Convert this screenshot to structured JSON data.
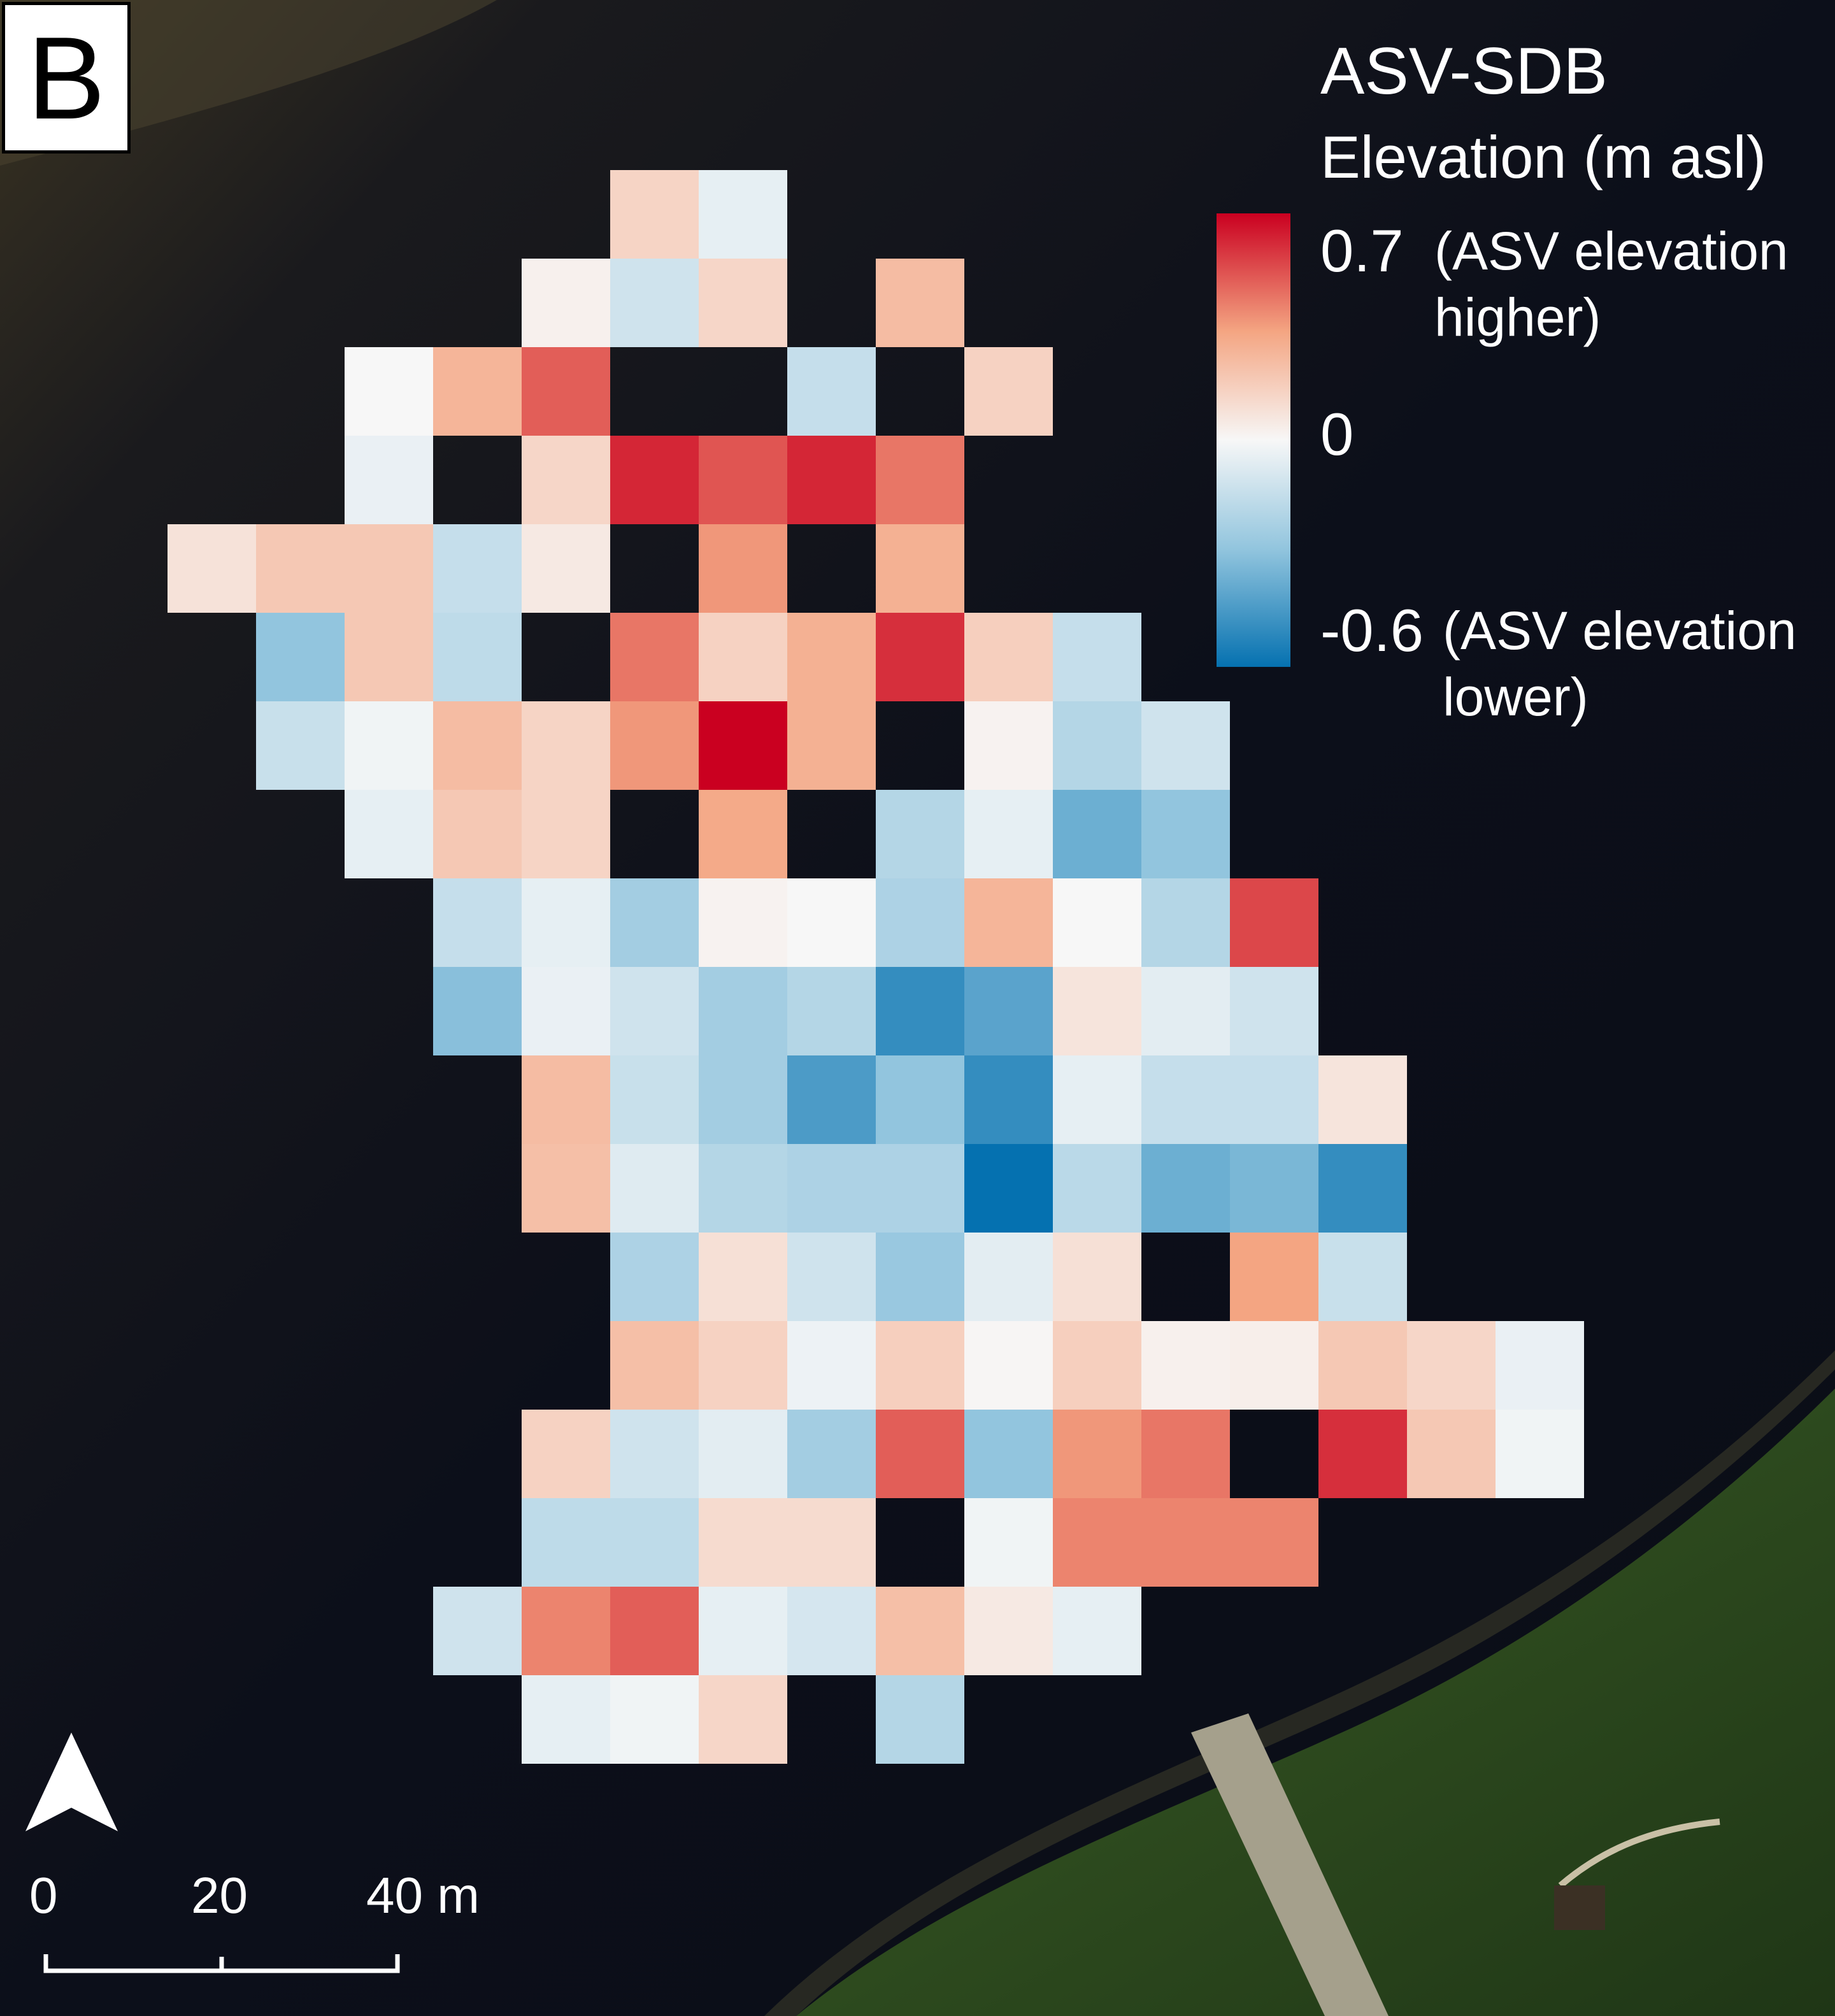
{
  "panel_label": "B",
  "legend": {
    "title": "ASV-SDB",
    "subtitle": "Elevation (m asl)",
    "max_value": "0.7",
    "max_note_1": "(ASV elevation",
    "max_note_2": "higher)",
    "mid_value": "0",
    "min_value": "-0.6",
    "min_note_1": "(ASV elevation",
    "min_note_2": "lower)",
    "colors": {
      "high": "#ca0020",
      "mid": "#f7f7f7",
      "low": "#0571b0"
    },
    "range": [
      -0.6,
      0.7
    ]
  },
  "north_arrow": {
    "icon": "north-arrow-icon"
  },
  "scale_bar": {
    "labels": [
      "0",
      "20",
      "40 m"
    ]
  },
  "grid": {
    "cell_size_m": 10,
    "min_value": -0.6,
    "max_value": 0.7,
    "rows": [
      [
        null,
        null,
        null,
        null,
        null,
        null,
        0.15,
        -0.05,
        null,
        null,
        null,
        null,
        null,
        null,
        null,
        null
      ],
      [
        null,
        null,
        null,
        null,
        null,
        0.03,
        -0.12,
        0.14,
        null,
        0.25,
        null,
        null,
        null,
        null,
        null,
        null
      ],
      [
        null,
        null,
        null,
        0.0,
        0.28,
        0.5,
        null,
        null,
        -0.15,
        null,
        0.16,
        null,
        null,
        null,
        null,
        null
      ],
      [
        null,
        null,
        null,
        -0.04,
        null,
        0.14,
        0.62,
        0.52,
        0.62,
        0.45,
        null,
        null,
        null,
        null,
        null,
        null
      ],
      [
        null,
        0.09,
        0.2,
        0.2,
        -0.15,
        0.06,
        null,
        0.38,
        null,
        0.3,
        null,
        null,
        null,
        null,
        null,
        null
      ],
      [
        null,
        null,
        -0.3,
        0.2,
        -0.17,
        null,
        0.45,
        0.16,
        0.3,
        0.6,
        0.17,
        -0.15,
        null,
        null,
        null,
        null
      ],
      [
        null,
        null,
        -0.14,
        -0.02,
        0.25,
        0.15,
        0.38,
        0.7,
        0.3,
        null,
        0.02,
        -0.2,
        -0.12,
        null,
        null,
        null
      ],
      [
        null,
        null,
        null,
        -0.05,
        0.2,
        0.15,
        null,
        0.33,
        null,
        -0.2,
        -0.05,
        -0.38,
        -0.3,
        null,
        null,
        null
      ],
      [
        null,
        null,
        null,
        null,
        -0.15,
        -0.05,
        -0.25,
        0.02,
        0.0,
        -0.22,
        0.28,
        0.0,
        -0.2,
        0.55,
        null,
        null
      ],
      [
        null,
        null,
        null,
        null,
        -0.32,
        -0.04,
        -0.12,
        -0.25,
        -0.2,
        -0.5,
        -0.42,
        0.08,
        -0.06,
        -0.12,
        null,
        null
      ],
      [
        null,
        null,
        null,
        null,
        null,
        0.25,
        -0.14,
        -0.25,
        -0.45,
        -0.3,
        -0.5,
        -0.05,
        -0.15,
        -0.15,
        0.08,
        null
      ],
      [
        null,
        null,
        null,
        null,
        null,
        0.24,
        -0.07,
        -0.2,
        -0.22,
        -0.22,
        -0.6,
        -0.18,
        -0.38,
        -0.35,
        -0.5,
        null
      ],
      [
        null,
        null,
        null,
        null,
        null,
        null,
        -0.22,
        0.1,
        -0.12,
        -0.28,
        -0.06,
        0.1,
        null,
        0.35,
        -0.14,
        null
      ],
      [
        null,
        null,
        null,
        null,
        null,
        null,
        0.24,
        0.16,
        -0.03,
        0.17,
        0.01,
        0.17,
        0.03,
        0.04,
        0.2,
        0.14,
        -0.04
      ],
      [
        null,
        null,
        null,
        null,
        null,
        0.16,
        -0.12,
        -0.06,
        -0.25,
        0.5,
        -0.3,
        0.38,
        0.45,
        null,
        0.6,
        0.2,
        -0.02
      ],
      [
        null,
        null,
        null,
        null,
        null,
        -0.17,
        -0.17,
        0.12,
        0.12,
        null,
        -0.02,
        0.42,
        0.42,
        0.42,
        null,
        null,
        null
      ],
      [
        null,
        null,
        null,
        null,
        -0.12,
        0.42,
        0.5,
        -0.05,
        -0.1,
        0.24,
        0.06,
        -0.05,
        null,
        null,
        null,
        null,
        null
      ],
      [
        null,
        null,
        null,
        null,
        null,
        -0.05,
        -0.02,
        0.14,
        null,
        -0.2,
        null,
        null,
        null,
        null,
        null,
        null,
        null
      ]
    ]
  }
}
